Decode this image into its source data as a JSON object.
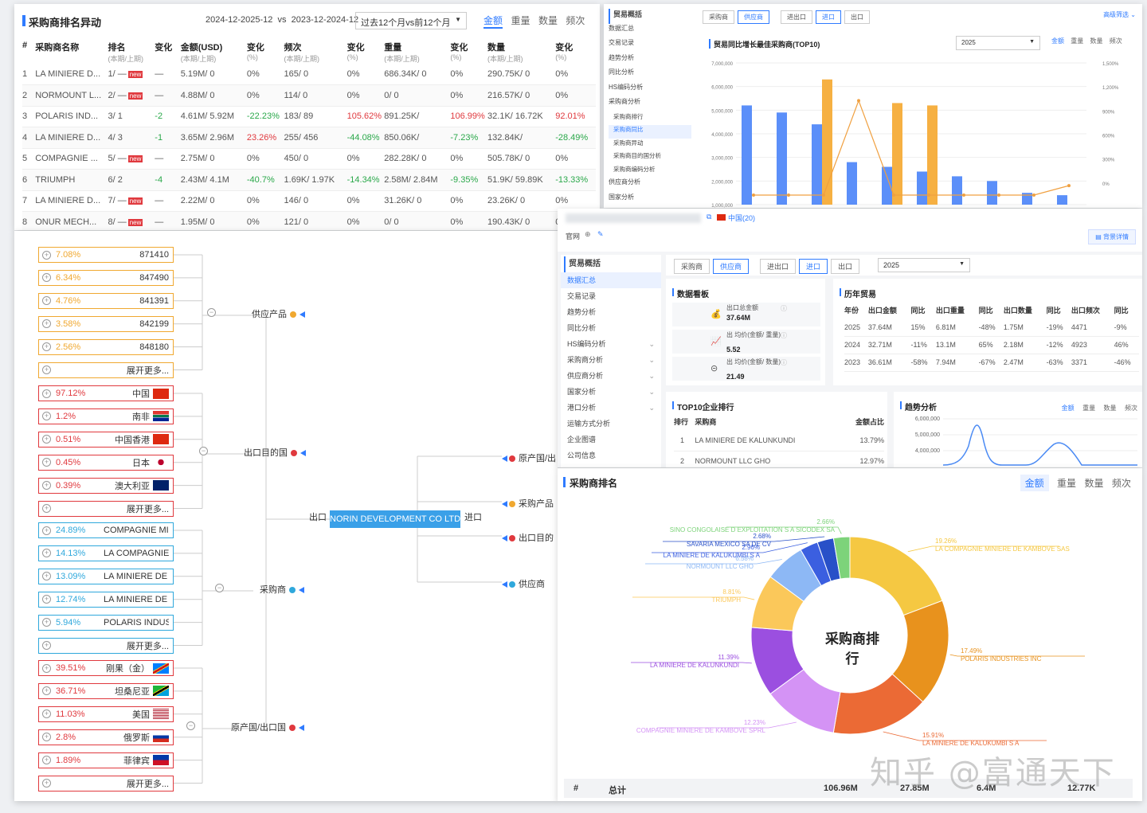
{
  "ranking_change": {
    "title": "采购商排名异动",
    "period_a": "2024-12-2025-12",
    "vs": "vs",
    "period_b": "2023-12-2024-12",
    "period_select": "过去12个月vs前12个月",
    "tabs": [
      "金额",
      "重量",
      "数量",
      "频次"
    ],
    "columns": [
      {
        "label": "#",
        "sub": ""
      },
      {
        "label": "采购商名称",
        "sub": ""
      },
      {
        "label": "排名",
        "sub": "(本期/上期)"
      },
      {
        "label": "变化",
        "sub": ""
      },
      {
        "label": "金额(USD)",
        "sub": "(本期/上期)"
      },
      {
        "label": "变化",
        "sub": "(%)"
      },
      {
        "label": "频次",
        "sub": "(本期/上期)"
      },
      {
        "label": "变化",
        "sub": "(%)"
      },
      {
        "label": "重量",
        "sub": "(本期/上期)"
      },
      {
        "label": "变化",
        "sub": "(%)"
      },
      {
        "label": "数量",
        "sub": "(本期/上期)"
      },
      {
        "label": "变化",
        "sub": "(%)"
      }
    ],
    "rows": [
      {
        "no": "1",
        "name": "LA MINIERE D...",
        "rank": "1/ —",
        "new": "new",
        "chg": "—",
        "amt": "5.19M/ 0",
        "amt_pct": "0%",
        "freq": "165/ 0",
        "freq_pct": "0%",
        "wt": "686.34K/ 0",
        "wt_pct": "0%",
        "qty": "290.75K/ 0",
        "qty_pct": "0%"
      },
      {
        "no": "2",
        "name": "NORMOUNT L...",
        "rank": "2/ —",
        "new": "new",
        "chg": "—",
        "amt": "4.88M/ 0",
        "amt_pct": "0%",
        "freq": "114/ 0",
        "freq_pct": "0%",
        "wt": "0/ 0",
        "wt_pct": "0%",
        "qty": "216.57K/ 0",
        "qty_pct": "0%"
      },
      {
        "no": "3",
        "name": "POLARIS IND...",
        "rank": "3/ 1",
        "new": "",
        "chg": "-2",
        "amt": "4.61M/ 5.92M",
        "amt_pct": "-22.23%",
        "freq": "183/ 89",
        "freq_pct": "105.62%",
        "wt": "891.25K/",
        "wt_pct": "106.99%",
        "qty": "32.1K/ 16.72K",
        "qty_pct": "92.01%"
      },
      {
        "no": "4",
        "name": "LA MINIERE D...",
        "rank": "4/ 3",
        "new": "",
        "chg": "-1",
        "amt": "3.65M/ 2.96M",
        "amt_pct": "23.26%",
        "freq": "255/ 456",
        "freq_pct": "-44.08%",
        "wt": "850.06K/",
        "wt_pct": "-7.23%",
        "qty": "132.84K/",
        "qty_pct": "-28.49%"
      },
      {
        "no": "5",
        "name": "COMPAGNIE ...",
        "rank": "5/ —",
        "new": "new",
        "chg": "—",
        "amt": "2.75M/ 0",
        "amt_pct": "0%",
        "freq": "450/ 0",
        "freq_pct": "0%",
        "wt": "282.28K/ 0",
        "wt_pct": "0%",
        "qty": "505.78K/ 0",
        "qty_pct": "0%"
      },
      {
        "no": "6",
        "name": "TRIUMPH",
        "rank": "6/ 2",
        "new": "",
        "chg": "-4",
        "amt": "2.43M/ 4.1M",
        "amt_pct": "-40.7%",
        "freq": "1.69K/ 1.97K",
        "freq_pct": "-14.34%",
        "wt": "2.58M/ 2.84M",
        "wt_pct": "-9.35%",
        "qty": "51.9K/ 59.89K",
        "qty_pct": "-13.33%"
      },
      {
        "no": "7",
        "name": "LA MINIERE D...",
        "rank": "7/ —",
        "new": "new",
        "chg": "—",
        "amt": "2.22M/ 0",
        "amt_pct": "0%",
        "freq": "146/ 0",
        "freq_pct": "0%",
        "wt": "31.26K/ 0",
        "wt_pct": "0%",
        "qty": "23.26K/ 0",
        "qty_pct": "0%"
      },
      {
        "no": "8",
        "name": "ONUR MECH...",
        "rank": "8/ —",
        "new": "new",
        "chg": "—",
        "amt": "1.95M/ 0",
        "amt_pct": "0%",
        "freq": "121/ 0",
        "freq_pct": "0%",
        "wt": "0/ 0",
        "wt_pct": "0%",
        "qty": "190.43K/ 0",
        "qty_pct": "0%"
      }
    ]
  },
  "top10_panel": {
    "sidebar": [
      "贸易概括",
      "数据汇总",
      "交易记录",
      "趋势分析",
      "同比分析",
      "HS编码分析",
      "采购商分析",
      "采购商排行",
      "采购商同比",
      "采购商异动",
      "采购商目的国分析",
      "采购商编码分析",
      "供应商分析",
      "国家分析"
    ],
    "buttons": [
      "采购商",
      "供应商",
      "进出口",
      "进口",
      "出口"
    ],
    "advanced": "高级筛选",
    "chart_title": "贸易同比增长最佳采购商(TOP10)",
    "year": "2025",
    "tabs": [
      "金额",
      "重量",
      "数量",
      "频次"
    ],
    "chart_data": {
      "type": "bar",
      "yticks": [
        "7,000,000",
        "6,000,000",
        "5,000,000",
        "4,000,000",
        "3,000,000",
        "2,000,000",
        "1,000,000"
      ],
      "y2ticks": [
        "1,500%",
        "1,200%",
        "900%",
        "600%",
        "300%",
        "0%"
      ],
      "series": [
        {
          "name": "本期",
          "color": "#5b8ff9",
          "values": [
            5.2,
            4.9,
            4.4,
            2.8,
            2.6,
            2.4,
            2.2,
            2.0,
            1.5,
            1.4
          ]
        },
        {
          "name": "上期",
          "color": "#f6b042",
          "values": [
            0,
            0,
            6.3,
            0,
            5.3,
            5.2,
            0,
            0,
            0,
            0
          ]
        }
      ],
      "line": [
        0,
        0,
        0,
        1000,
        0,
        0,
        0,
        0,
        0,
        100
      ]
    }
  },
  "mindmap": {
    "center": "NORIN DEVELOPMENT CO LTD",
    "left_label": "出口",
    "right_label": "进口",
    "branches_left": [
      "供应产品",
      "出口目的国",
      "采购商",
      "原产国/出口国"
    ],
    "branches_right": [
      "原产国/出",
      "采购产品",
      "出口目的",
      "供应商"
    ],
    "expand_more": "展开更多...",
    "products": [
      {
        "pct": "7.08%",
        "val": "871410"
      },
      {
        "pct": "6.34%",
        "val": "847490"
      },
      {
        "pct": "4.76%",
        "val": "841391"
      },
      {
        "pct": "3.58%",
        "val": "842199"
      },
      {
        "pct": "2.56%",
        "val": "848180"
      }
    ],
    "dest_countries": [
      {
        "pct": "97.12%",
        "val": "中国",
        "flag": "cn"
      },
      {
        "pct": "1.2%",
        "val": "南非",
        "flag": "za"
      },
      {
        "pct": "0.51%",
        "val": "中国香港",
        "flag": "hk"
      },
      {
        "pct": "0.45%",
        "val": "日本",
        "flag": "jp"
      },
      {
        "pct": "0.39%",
        "val": "澳大利亚",
        "flag": "au"
      }
    ],
    "buyers": [
      {
        "pct": "24.89%",
        "val": "COMPAGNIE MINIER..."
      },
      {
        "pct": "14.13%",
        "val": "LA COMPAGNIE MIN..."
      },
      {
        "pct": "13.09%",
        "val": "LA MINIERE DE KA..."
      },
      {
        "pct": "12.74%",
        "val": "LA MINIERE DE KA..."
      },
      {
        "pct": "5.94%",
        "val": "POLARIS INDUSTRI..."
      }
    ],
    "origins": [
      {
        "pct": "39.51%",
        "val": "刚果（金）",
        "flag": "cd"
      },
      {
        "pct": "36.71%",
        "val": "坦桑尼亚",
        "flag": "tz"
      },
      {
        "pct": "11.03%",
        "val": "美国",
        "flag": "us"
      },
      {
        "pct": "2.8%",
        "val": "俄罗斯",
        "flag": "ru"
      },
      {
        "pct": "1.89%",
        "val": "菲律宾",
        "flag": "ph"
      }
    ]
  },
  "company": {
    "country": "中国(20)",
    "site_label": "官网",
    "bg_detail": "背景详情",
    "menu": [
      "贸易概括",
      "数据汇总",
      "交易记录",
      "趋势分析",
      "同比分析",
      "HS编码分析",
      "采购商分析",
      "供应商分析",
      "国家分析",
      "港口分析",
      "运输方式分析",
      "企业图谱",
      "公司信息"
    ],
    "buttons": [
      "采购商",
      "供应商",
      "进出口",
      "进口",
      "出口"
    ],
    "year": "2025",
    "dashboard_title": "数据看板",
    "metrics": [
      {
        "label": "出口总金额",
        "value": "37.64M"
      },
      {
        "label": "出 均价(金额/ 重量)",
        "value": "5.52"
      },
      {
        "label": "出 均价(金额/ 数量)",
        "value": "21.49"
      }
    ],
    "history_title": "历年贸易",
    "history_cols": [
      "年份",
      "出口金额",
      "同比",
      "出口重量",
      "同比",
      "出口数量",
      "同比",
      "出口频次",
      "同比"
    ],
    "history": [
      {
        "year": "2025",
        "amt": "37.64M",
        "amt_y": "15%",
        "wt": "6.81M",
        "wt_y": "-48%",
        "qty": "1.75M",
        "qty_y": "-19%",
        "fq": "4471",
        "fq_y": "-9%"
      },
      {
        "year": "2024",
        "amt": "32.71M",
        "amt_y": "-11%",
        "wt": "13.1M",
        "wt_y": "65%",
        "qty": "2.18M",
        "qty_y": "-12%",
        "fq": "4923",
        "fq_y": "46%"
      },
      {
        "year": "2023",
        "amt": "36.61M",
        "amt_y": "-58%",
        "wt": "7.94M",
        "wt_y": "-67%",
        "qty": "2.47M",
        "qty_y": "-63%",
        "fq": "3371",
        "fq_y": "-46%"
      }
    ],
    "top10_title": "TOP10企业排行",
    "top10_cols": [
      "排行",
      "采购商",
      "金额占比"
    ],
    "top10": [
      {
        "rank": "1",
        "name": "LA MINIERE DE KALUNKUNDI",
        "share": "13.79%"
      },
      {
        "rank": "2",
        "name": "NORMOUNT LLC GHO",
        "share": "12.97%"
      }
    ],
    "trend_title": "趋势分析",
    "trend_tabs": [
      "金额",
      "重量",
      "数量",
      "频次"
    ],
    "trend_yticks": [
      "6,000,000",
      "5,000,000",
      "4,000,000"
    ]
  },
  "buyer_rank": {
    "title": "采购商排名",
    "tabs": [
      "金额",
      "重量",
      "数量",
      "频次"
    ],
    "center_label": "采购商排行",
    "chart_data": {
      "type": "pie",
      "slices": [
        {
          "label": "LA COMPAGNIE MINIERE DE KAMBOVE SAS",
          "pct": "19.26%",
          "value": 19.26,
          "color": "#f5c842"
        },
        {
          "label": "POLARIS INDUSTRIES INC",
          "pct": "17.49%",
          "value": 17.49,
          "color": "#e8921d"
        },
        {
          "label": "LA MINIERE DE KALUKUMBI S A",
          "pct": "15.91%",
          "value": 15.91,
          "color": "#eb6a35"
        },
        {
          "label": "COMPAGNIE MINIERE DE KAMBOVE SPRL",
          "pct": "12.23%",
          "value": 12.23,
          "color": "#d493f5"
        },
        {
          "label": "LA MINIERE DE KALUNKUNDI",
          "pct": "11.39%",
          "value": 11.39,
          "color": "#9b4fe0"
        },
        {
          "label": "TRIUMPH",
          "pct": "8.81%",
          "value": 8.81,
          "color": "#fbc85a"
        },
        {
          "label": "NORMOUNT LLC GHO",
          "pct": "6.58%",
          "value": 6.58,
          "color": "#8db8f5"
        },
        {
          "label": "LA MINIERE DE KALUKUMBI S A",
          "pct": "2.96%",
          "value": 2.96,
          "color": "#3b5fe0"
        },
        {
          "label": "SAVARIA MEXICO SA DE CV",
          "pct": "2.68%",
          "value": 2.68,
          "color": "#2850c8"
        },
        {
          "label": "SINO CONGOLAISE D EXPLOITATION S A SICODEX SA",
          "pct": "2.66%",
          "value": 2.66,
          "color": "#7dd37a"
        }
      ]
    },
    "total_label": "总计",
    "total_hash": "#",
    "totals": [
      "106.96M",
      "27.85M",
      "6.4M",
      "12.77K"
    ]
  },
  "watermark": "知乎 @富通天下"
}
